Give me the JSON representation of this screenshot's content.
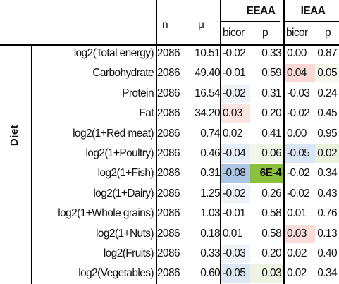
{
  "header": {
    "n": "n",
    "mu": "μ",
    "eeaa": "EEAA",
    "ieaa": "IEAA",
    "bicor": "bicor",
    "p": "p"
  },
  "group_label": "Diet",
  "rows": [
    {
      "label": "log2(Total energy)",
      "n": "2086",
      "mu": "10.51",
      "e_bicor": "-0.02",
      "e_p": "0.33",
      "i_bicor": "0.00",
      "i_p": "0.87"
    },
    {
      "label": "Carbohydrate",
      "n": "2086",
      "mu": "49.40",
      "e_bicor": "-0.01",
      "e_p": "0.59",
      "i_bicor": "0.04",
      "i_p": "0.05"
    },
    {
      "label": "Protein",
      "n": "2086",
      "mu": "16.54",
      "e_bicor": "-0.02",
      "e_p": "0.31",
      "i_bicor": "-0.03",
      "i_p": "0.24"
    },
    {
      "label": "Fat",
      "n": "2086",
      "mu": "34.20",
      "e_bicor": "0.03",
      "e_p": "0.20",
      "i_bicor": "-0.02",
      "i_p": "0.45"
    },
    {
      "label": "log2(1+Red meat)",
      "n": "2086",
      "mu": "0.74",
      "e_bicor": "0.02",
      "e_p": "0.41",
      "i_bicor": "0.00",
      "i_p": "0.95"
    },
    {
      "label": "log2(1+Poultry)",
      "n": "2086",
      "mu": "0.46",
      "e_bicor": "-0.04",
      "e_p": "0.06",
      "i_bicor": "-0.05",
      "i_p": "0.02"
    },
    {
      "label": "log2(1+Fish)",
      "n": "2086",
      "mu": "0.31",
      "e_bicor": "-0.08",
      "e_p": "6E-4",
      "i_bicor": "-0.02",
      "i_p": "0.34"
    },
    {
      "label": "log2(1+Dairy)",
      "n": "2086",
      "mu": "1.25",
      "e_bicor": "-0.02",
      "e_p": "0.26",
      "i_bicor": "-0.02",
      "i_p": "0.43"
    },
    {
      "label": "log2(1+Whole grains)",
      "n": "2086",
      "mu": "1.03",
      "e_bicor": "-0.01",
      "e_p": "0.58",
      "i_bicor": "0.01",
      "i_p": "0.76"
    },
    {
      "label": "log2(1+Nuts)",
      "n": "2086",
      "mu": "0.18",
      "e_bicor": "0.01",
      "e_p": "0.58",
      "i_bicor": "0.03",
      "i_p": "0.13"
    },
    {
      "label": "log2(Fruits)",
      "n": "2086",
      "mu": "0.33",
      "e_bicor": "-0.03",
      "e_p": "0.20",
      "i_bicor": "0.02",
      "i_p": "0.40"
    },
    {
      "label": "log2(Vegetables)",
      "n": "2086",
      "mu": "0.60",
      "e_bicor": "-0.05",
      "e_p": "0.03",
      "i_bicor": "0.02",
      "i_p": "0.34"
    }
  ],
  "cell_colors": {
    "e_bicor": [
      "#ffffff",
      "#ffffff",
      "#eef3fa",
      "#fbe5e2",
      "#ffffff",
      "#e6eef8",
      "#aec6e6",
      "#eef3fa",
      "#ffffff",
      "#ffffff",
      "#eef3fa",
      "#dde7f4"
    ],
    "e_p": [
      "#ffffff",
      "#ffffff",
      "#ffffff",
      "#ffffff",
      "#ffffff",
      "#f0f6e8",
      "#8dbf3e",
      "#ffffff",
      "#ffffff",
      "#ffffff",
      "#ffffff",
      "#edf5e2"
    ],
    "i_bicor": [
      "#ffffff",
      "#f8d9d6",
      "#ffffff",
      "#ffffff",
      "#ffffff",
      "#dbe6f4",
      "#ffffff",
      "#ffffff",
      "#ffffff",
      "#f9dcd9",
      "#ffffff",
      "#ffffff"
    ],
    "i_p": [
      "#ffffff",
      "#f3f8ec",
      "#ffffff",
      "#ffffff",
      "#ffffff",
      "#e8f2dc",
      "#ffffff",
      "#ffffff",
      "#ffffff",
      "#ffffff",
      "#ffffff",
      "#ffffff"
    ]
  },
  "bold_cells": [
    {
      "row": 6,
      "col": "e_p"
    }
  ]
}
